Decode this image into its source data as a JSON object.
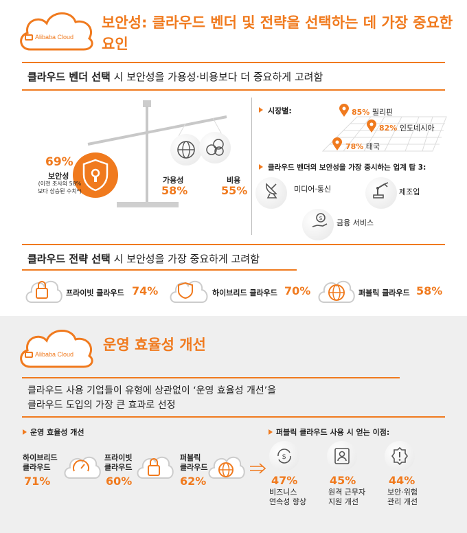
{
  "brand": {
    "logo_text": "Alibaba Cloud"
  },
  "section1": {
    "title": "보안성: 클라우드 벤더 및 전략을 선택하는 데 가장 중요한 요인",
    "vendor_heading_bold": "클라우드 벤더 선택",
    "vendor_heading_rest": " 시 보안성을 가용성·비용보다 더 중요하게 고려함",
    "security": {
      "pct": "69%",
      "label": "보안성",
      "note": "(이전 조사의 58%보다 상승된 수치*)"
    },
    "availability": {
      "label": "가용성",
      "pct": "58%"
    },
    "cost": {
      "label": "비용",
      "pct": "55%"
    },
    "market_heading": "시장별:",
    "markets": [
      {
        "pct": "85%",
        "name": "필리핀"
      },
      {
        "pct": "82%",
        "name": "인도네시아"
      },
      {
        "pct": "78%",
        "name": "태국"
      }
    ],
    "top3_heading": "클라우드 벤더의 보안성을 가장 중시하는 업계 탑 3:",
    "industries": [
      "미디어·통신",
      "제조업",
      "금융 서비스"
    ],
    "strategy_heading_bold": "클라우드 전략 선택",
    "strategy_heading_rest": " 시 보안성을 가장 중요하게 고려함",
    "strategies": [
      {
        "name": "프라이빗 클라우드",
        "pct": "74%"
      },
      {
        "name": "하이브리드 클라우드",
        "pct": "70%"
      },
      {
        "name": "퍼블릭 클라우드",
        "pct": "58%"
      }
    ]
  },
  "section2": {
    "title": "운영 효율성 개선",
    "intro_line1": "클라우드 사용 기업들이 유형에 상관없이 ‘운영 효율성 개선’을",
    "intro_line2": "클라우드 도입의 가장 큰 효과로 선정",
    "efficiency_heading": "운영 효율성 개선",
    "efficiency": [
      {
        "name_line1": "하이브리드",
        "name_line2": "클라우드",
        "pct": "71%"
      },
      {
        "name_line1": "프라이빗",
        "name_line2": "클라우드",
        "pct": "60%"
      },
      {
        "name_line1": "퍼블릭",
        "name_line2": "클라우드",
        "pct": "62%"
      }
    ],
    "benefits_heading": "퍼블릭 클라우드 사용 시 얻는 이점:",
    "benefits": [
      {
        "pct": "47%",
        "line1": "비즈니스",
        "line2": "연속성 향상"
      },
      {
        "pct": "45%",
        "line1": "원격 근무자",
        "line2": "지원 개선"
      },
      {
        "pct": "44%",
        "line1": "보안·위험",
        "line2": "관리 개선"
      }
    ]
  },
  "colors": {
    "accent": "#f07a1e",
    "bg_gray": "#efefef"
  }
}
